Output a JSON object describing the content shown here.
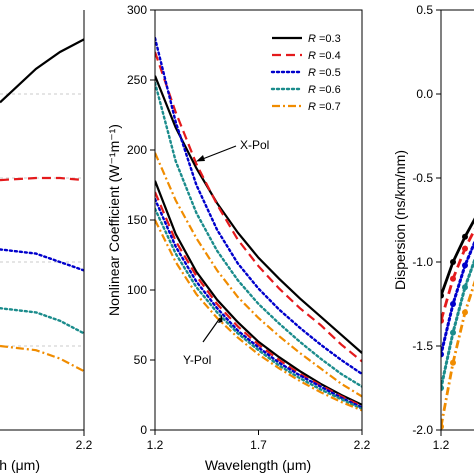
{
  "chart_data": [
    {
      "panel": "left",
      "type": "line",
      "xlabel": "Wavelength (μm)",
      "xlabel_visible": "gth (μm)",
      "x_ticks": [
        "2.2"
      ],
      "xlim": [
        1.2,
        2.2
      ],
      "series": [
        {
          "color": "#000000",
          "dash": "solid",
          "x": [
            1.85,
            2.0,
            2.1,
            2.2
          ],
          "y": [
            0.78,
            0.86,
            0.9,
            0.93
          ]
        },
        {
          "color": "#e41a1c",
          "dash": "dash",
          "x": [
            1.85,
            2.0,
            2.1,
            2.2
          ],
          "y": [
            0.595,
            0.6,
            0.6,
            0.595
          ]
        },
        {
          "color": "#0000cc",
          "dash": "dot",
          "x": [
            1.85,
            2.0,
            2.1,
            2.2
          ],
          "y": [
            0.43,
            0.42,
            0.4,
            0.38
          ]
        },
        {
          "color": "#1b8c8c",
          "dash": "dot",
          "x": [
            1.85,
            2.0,
            2.1,
            2.2
          ],
          "y": [
            0.29,
            0.28,
            0.26,
            0.23
          ]
        },
        {
          "color": "#f08c00",
          "dash": "dashdot",
          "x": [
            1.85,
            2.0,
            2.1,
            2.2
          ],
          "y": [
            0.2,
            0.19,
            0.17,
            0.14
          ]
        }
      ]
    },
    {
      "panel": "middle",
      "type": "line",
      "xlabel": "Wavelength (μm)",
      "ylabel": "Nonlinear Coefficient (W⁻¹m⁻¹)",
      "xlim": [
        1.2,
        2.2
      ],
      "ylim": [
        0,
        300
      ],
      "x_ticks": [
        "1.2",
        "1.7",
        "2.2"
      ],
      "y_ticks": [
        "0",
        "50",
        "100",
        "150",
        "200",
        "250",
        "300"
      ],
      "legend": {
        "placement": "top-right",
        "entries": [
          "R =0.3",
          "R =0.4",
          "R =0.5",
          "R =0.6",
          "R =0.7"
        ]
      },
      "annotations": [
        "X-Pol",
        "Y-Pol"
      ],
      "x": [
        1.2,
        1.3,
        1.4,
        1.5,
        1.6,
        1.7,
        1.8,
        1.9,
        2.0,
        2.1,
        2.2
      ],
      "series": [
        {
          "name": "R =0.3",
          "group": "X-Pol",
          "color": "#000000",
          "dash": "solid",
          "y": [
            253,
            216,
            187,
            162,
            141,
            123,
            108,
            94,
            81,
            68,
            55
          ]
        },
        {
          "name": "R =0.4",
          "group": "X-Pol",
          "color": "#e41a1c",
          "dash": "dash",
          "y": [
            270,
            227,
            190,
            161,
            136,
            117,
            101,
            87,
            75,
            61,
            49
          ]
        },
        {
          "name": "R =0.5",
          "group": "X-Pol",
          "color": "#0000cc",
          "dash": "dot",
          "y": [
            280,
            220,
            175,
            143,
            119,
            101,
            86,
            73,
            61,
            50,
            40
          ]
        },
        {
          "name": "R =0.6",
          "group": "X-Pol",
          "color": "#1b8c8c",
          "dash": "dot",
          "y": [
            248,
            192,
            155,
            128,
            107,
            90,
            76,
            63,
            51,
            40,
            31
          ]
        },
        {
          "name": "R =0.7",
          "group": "X-Pol",
          "color": "#f08c00",
          "dash": "dashdot",
          "y": [
            198,
            164,
            137,
            114,
            95,
            80,
            67,
            55,
            44,
            33,
            24
          ]
        },
        {
          "name": "R =0.3",
          "group": "Y-Pol",
          "color": "#000000",
          "dash": "solid",
          "y": [
            178,
            140,
            113,
            93,
            77,
            63,
            52,
            42,
            33,
            25,
            18
          ]
        },
        {
          "name": "R =0.4",
          "group": "Y-Pol",
          "color": "#e41a1c",
          "dash": "dash",
          "y": [
            170,
            135,
            110,
            90,
            74,
            61,
            50,
            40,
            32,
            24,
            17
          ]
        },
        {
          "name": "R =0.5",
          "group": "Y-Pol",
          "color": "#0000cc",
          "dash": "dot",
          "y": [
            165,
            131,
            106,
            87,
            71,
            59,
            48,
            39,
            31,
            23,
            16
          ]
        },
        {
          "name": "R =0.6",
          "group": "Y-Pol",
          "color": "#1b8c8c",
          "dash": "dot",
          "y": [
            158,
            126,
            102,
            84,
            69,
            57,
            46,
            37,
            29,
            22,
            15
          ]
        },
        {
          "name": "R =0.7",
          "group": "Y-Pol",
          "color": "#f08c00",
          "dash": "dashdot",
          "y": [
            150,
            120,
            97,
            80,
            66,
            54,
            44,
            35,
            27,
            20,
            14
          ]
        }
      ]
    },
    {
      "panel": "right",
      "type": "line",
      "xlabel": "Wavelength (μm)",
      "ylabel": "Dispersion (ns/km/nm)",
      "xlim": [
        1.2,
        1.45
      ],
      "ylim": [
        -2.0,
        0.5
      ],
      "x_ticks": [
        "1.2"
      ],
      "y_ticks": [
        "0.5",
        "0.0",
        "-0.5",
        "-1.0",
        "-1.5",
        "-2.0"
      ],
      "x": [
        1.2,
        1.25,
        1.3,
        1.35,
        1.4,
        1.45
      ],
      "series": [
        {
          "color": "#000000",
          "dash": "solid",
          "y": [
            -1.2,
            -1.0,
            -0.85,
            -0.72,
            -0.62,
            -0.55
          ]
        },
        {
          "color": "#e41a1c",
          "dash": "dash",
          "y": [
            -1.35,
            -1.1,
            -0.92,
            -0.78,
            -0.65,
            -0.55
          ]
        },
        {
          "color": "#0000cc",
          "dash": "dot",
          "y": [
            -1.55,
            -1.25,
            -1.02,
            -0.85,
            -0.72,
            -0.62
          ]
        },
        {
          "color": "#1b8c8c",
          "dash": "dot",
          "y": [
            -1.75,
            -1.42,
            -1.15,
            -0.95,
            -0.8,
            -0.7
          ]
        },
        {
          "color": "#f08c00",
          "dash": "dashdot",
          "y": [
            -1.98,
            -1.6,
            -1.3,
            -1.08,
            -0.9,
            -0.78
          ]
        }
      ]
    }
  ]
}
